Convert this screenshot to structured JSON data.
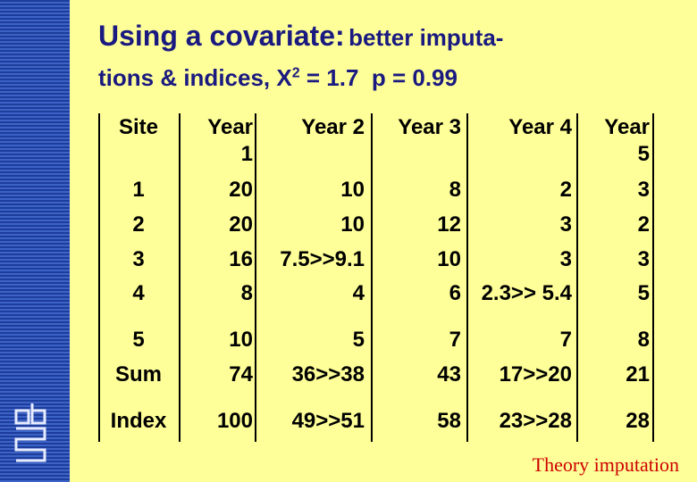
{
  "title": {
    "lead": "Using a covariate:",
    "rest": "better imputa-",
    "line2": "tions & indices, X",
    "sup": "2",
    "line2_end": " = 1.7  p = 0.99"
  },
  "table": {
    "header": [
      "Site",
      "Year 1",
      "Year 2",
      "Year 3",
      "Year 4",
      "Year 5"
    ],
    "rows": [
      [
        "1",
        "20",
        "10",
        "8",
        "2",
        "3"
      ],
      [
        "2",
        "20",
        "10",
        "12",
        "3",
        "2"
      ],
      [
        "3",
        "16",
        "7.5>>9.1",
        "10",
        "3",
        "3"
      ],
      [
        "4",
        "8",
        "4",
        "6",
        "2.3>> 5.4",
        "5"
      ],
      [
        "5",
        "10",
        "5",
        "7",
        "7",
        "8"
      ],
      [
        "Sum",
        "74",
        "36>>38",
        "43",
        "17>>20",
        "21"
      ],
      [
        "Index",
        "100",
        "49>>51",
        "58",
        "23>>28",
        "28"
      ]
    ]
  },
  "footer": "Theory imputation"
}
